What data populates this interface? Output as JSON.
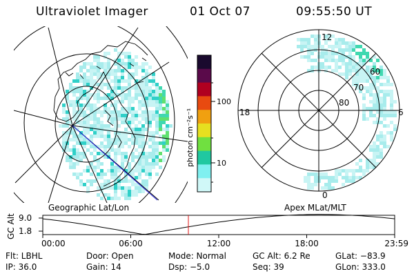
{
  "header": {
    "title": "Ultraviolet Imager",
    "date": "01 Oct 07",
    "time": "09:55:50 UT"
  },
  "left_map": {
    "label": "Geographic Lat/Lon"
  },
  "right_map": {
    "label": "Apex MLat/MLT",
    "mlt_labels": {
      "top": "12",
      "left": "18",
      "right": "6",
      "bottom": "0"
    },
    "lat_labels": [
      "60",
      "70",
      "80"
    ]
  },
  "colorbar": {
    "unit_label": "photon cm⁻²s⁻¹",
    "ticks": [
      "100",
      "10"
    ],
    "colors": [
      "#1a0a2e",
      "#5a0a4a",
      "#b00020",
      "#e84a10",
      "#f0a010",
      "#e6e020",
      "#70e040",
      "#20c8a0",
      "#80f0f0",
      "#d0f8f8"
    ]
  },
  "altitude_plot": {
    "ylabel": "GC Alt",
    "y_ticks": [
      "9.0",
      "1.8"
    ],
    "x_ticks": [
      "00:00",
      "06:00",
      "12:00",
      "18:00",
      "23:59"
    ],
    "current_time_marker_hours": 9.93,
    "marker_color": "#e01010"
  },
  "status": {
    "row1": {
      "filter": "Flt: LBHL",
      "door": "Door: Open",
      "mode": "Mode: Normal",
      "gc_alt": "GC Alt: 6.2 Re",
      "glat": "GLat: −83.9"
    },
    "row2": {
      "ip": "IP: 36.0",
      "gain": "Gain: 14",
      "dsp": "Dsp:   −5.0",
      "seq": "Seq: 39",
      "glon": "GLon: 333.0"
    }
  }
}
